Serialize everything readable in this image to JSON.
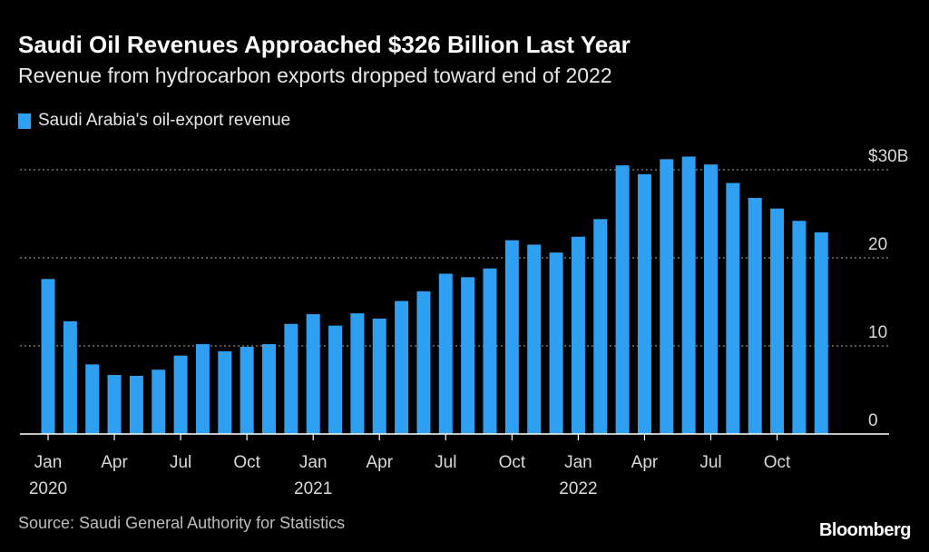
{
  "header": {
    "title": "Saudi Oil Revenues Approached $326 Billion Last Year",
    "subtitle": "Revenue from hydrocarbon exports dropped toward end of 2022"
  },
  "footer": {
    "source": "Source: Saudi General Authority for Statistics",
    "brand": "Bloomberg"
  },
  "colors": {
    "bar": "#2f9ff2",
    "background": "#000000",
    "grid": "#8a8a8a"
  },
  "chart_data": {
    "type": "bar",
    "title": "Saudi Oil Revenues Approached $326 Billion Last Year",
    "subtitle": "Revenue from hydrocarbon exports dropped toward end of 2022",
    "xlabel": "",
    "ylabel": "",
    "ylim": [
      0,
      30
    ],
    "yticks": [
      {
        "value": 0,
        "label": "0"
      },
      {
        "value": 10,
        "label": "10"
      },
      {
        "value": 20,
        "label": "20"
      },
      {
        "value": 30,
        "label": "$30B"
      }
    ],
    "grid": true,
    "legend_position": "top-left",
    "categories": [
      "2020-01",
      "2020-02",
      "2020-03",
      "2020-04",
      "2020-05",
      "2020-06",
      "2020-07",
      "2020-08",
      "2020-09",
      "2020-10",
      "2020-11",
      "2020-12",
      "2021-01",
      "2021-02",
      "2021-03",
      "2021-04",
      "2021-05",
      "2021-06",
      "2021-07",
      "2021-08",
      "2021-09",
      "2021-10",
      "2021-11",
      "2021-12",
      "2022-01",
      "2022-02",
      "2022-03",
      "2022-04",
      "2022-05",
      "2022-06",
      "2022-07",
      "2022-08",
      "2022-09",
      "2022-10",
      "2022-11",
      "2022-12"
    ],
    "x_tick_labels": [
      {
        "index": 0,
        "label": "Jan",
        "year": "2020"
      },
      {
        "index": 3,
        "label": "Apr",
        "year": ""
      },
      {
        "index": 6,
        "label": "Jul",
        "year": ""
      },
      {
        "index": 9,
        "label": "Oct",
        "year": ""
      },
      {
        "index": 12,
        "label": "Jan",
        "year": "2021"
      },
      {
        "index": 15,
        "label": "Apr",
        "year": ""
      },
      {
        "index": 18,
        "label": "Jul",
        "year": ""
      },
      {
        "index": 21,
        "label": "Oct",
        "year": ""
      },
      {
        "index": 24,
        "label": "Jan",
        "year": "2022"
      },
      {
        "index": 27,
        "label": "Apr",
        "year": ""
      },
      {
        "index": 30,
        "label": "Jul",
        "year": ""
      },
      {
        "index": 33,
        "label": "Oct",
        "year": ""
      }
    ],
    "series": [
      {
        "name": "Saudi Arabia's oil-export revenue",
        "values": [
          17.6,
          12.8,
          7.9,
          6.7,
          6.6,
          7.3,
          8.9,
          10.2,
          9.4,
          9.9,
          10.2,
          12.5,
          13.6,
          12.3,
          13.7,
          13.1,
          15.1,
          16.2,
          18.2,
          17.8,
          18.8,
          22.0,
          21.5,
          20.6,
          22.4,
          24.4,
          30.5,
          29.5,
          31.2,
          31.5,
          30.6,
          28.5,
          26.8,
          25.6,
          24.2,
          22.9
        ]
      }
    ]
  }
}
